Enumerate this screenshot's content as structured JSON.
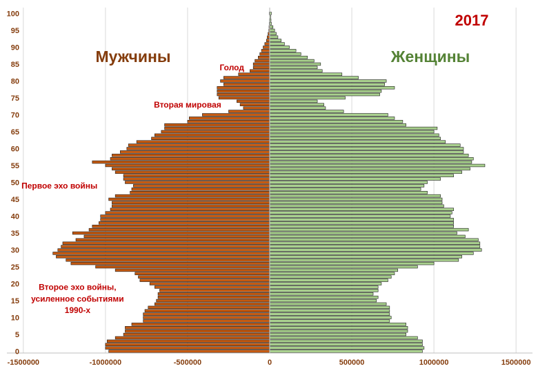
{
  "chart_data": {
    "type": "bar",
    "orientation": "horizontal",
    "title": "2017",
    "title_color": "#C00000",
    "series": [
      {
        "name": "Мужчины",
        "color": "#C55A11",
        "label_color": "#843C0C",
        "values": [
          -980000,
          -1000000,
          -1000000,
          -990000,
          -940000,
          -890000,
          -880000,
          -880000,
          -840000,
          -770000,
          -770000,
          -770000,
          -760000,
          -740000,
          -700000,
          -690000,
          -680000,
          -680000,
          -670000,
          -700000,
          -730000,
          -790000,
          -800000,
          -820000,
          -940000,
          -1060000,
          -1210000,
          -1240000,
          -1300000,
          -1320000,
          -1290000,
          -1270000,
          -1260000,
          -1180000,
          -1130000,
          -1200000,
          -1100000,
          -1080000,
          -1040000,
          -1030000,
          -1030000,
          -1000000,
          -970000,
          -960000,
          -960000,
          -980000,
          -940000,
          -850000,
          -840000,
          -830000,
          -880000,
          -890000,
          -890000,
          -940000,
          -960000,
          -1000000,
          -1080000,
          -970000,
          -960000,
          -910000,
          -870000,
          -860000,
          -810000,
          -720000,
          -700000,
          -660000,
          -640000,
          -640000,
          -500000,
          -490000,
          -410000,
          -250000,
          -160000,
          -180000,
          -200000,
          -310000,
          -320000,
          -320000,
          -320000,
          -280000,
          -300000,
          -280000,
          -190000,
          -120000,
          -100000,
          -100000,
          -90000,
          -70000,
          -60000,
          -50000,
          -40000,
          -30000,
          -20000,
          -15000,
          -10000,
          -5000,
          -4000,
          -3000,
          -2000,
          -1000,
          -3000
        ]
      },
      {
        "name": "Женщины",
        "color": "#A9D18E",
        "label_color": "#548235",
        "values": [
          930000,
          940000,
          930000,
          930000,
          900000,
          830000,
          840000,
          840000,
          830000,
          730000,
          740000,
          730000,
          730000,
          730000,
          710000,
          650000,
          660000,
          630000,
          660000,
          660000,
          680000,
          720000,
          740000,
          760000,
          780000,
          900000,
          1000000,
          1150000,
          1170000,
          1240000,
          1290000,
          1280000,
          1280000,
          1270000,
          1190000,
          1140000,
          1210000,
          1120000,
          1120000,
          1120000,
          1100000,
          1110000,
          1120000,
          1060000,
          1050000,
          1050000,
          1040000,
          960000,
          920000,
          940000,
          960000,
          1040000,
          1120000,
          1170000,
          1220000,
          1310000,
          1230000,
          1240000,
          1210000,
          1180000,
          1180000,
          1160000,
          1070000,
          1040000,
          1030000,
          1000000,
          1020000,
          830000,
          810000,
          760000,
          720000,
          450000,
          340000,
          330000,
          290000,
          460000,
          670000,
          680000,
          760000,
          700000,
          710000,
          540000,
          440000,
          320000,
          290000,
          310000,
          270000,
          230000,
          190000,
          160000,
          120000,
          90000,
          70000,
          50000,
          40000,
          30000,
          20000,
          10000,
          8000,
          6000,
          10000
        ]
      }
    ],
    "x": {
      "ticks": [
        -1500000,
        -1000000,
        -500000,
        0,
        500000,
        1000000,
        1500000
      ],
      "tick_labels": [
        "-1500000",
        "-1000000",
        "-500000",
        "0",
        "500000",
        "1000000",
        "1500000"
      ],
      "lim": [
        -1600000,
        1600000
      ]
    },
    "y": {
      "ticks": [
        0,
        5,
        10,
        15,
        20,
        25,
        30,
        35,
        40,
        45,
        50,
        55,
        60,
        65,
        70,
        75,
        80,
        85,
        90,
        95,
        100
      ],
      "tick_labels": [
        "0",
        "5",
        "10",
        "15",
        "20",
        "25",
        "30",
        "35",
        "40",
        "45",
        "50",
        "55",
        "60",
        "65",
        "70",
        "75",
        "80",
        "85",
        "90",
        "95",
        "100"
      ],
      "lim": [
        0,
        100
      ]
    },
    "tick_color": "#843C0C",
    "grid": "vertical",
    "annotations": [
      {
        "text": "Голод",
        "age": 84,
        "x": -230000,
        "anchor": "middle"
      },
      {
        "text": "Вторая мировая",
        "age": 73,
        "x": -500000,
        "anchor": "middle"
      },
      {
        "text": "Первое эхо войны",
        "age": 49,
        "x": -1280000,
        "anchor": "middle"
      },
      {
        "text": "Второе эхо войны,",
        "age": 19,
        "x": -1170000,
        "anchor": "middle"
      },
      {
        "text": "усиленное событиями",
        "age": 15.5,
        "x": -1170000,
        "anchor": "middle"
      },
      {
        "text": "1990-х",
        "age": 12.2,
        "x": -1170000,
        "anchor": "middle"
      }
    ],
    "annotation_color": "#C00000"
  }
}
